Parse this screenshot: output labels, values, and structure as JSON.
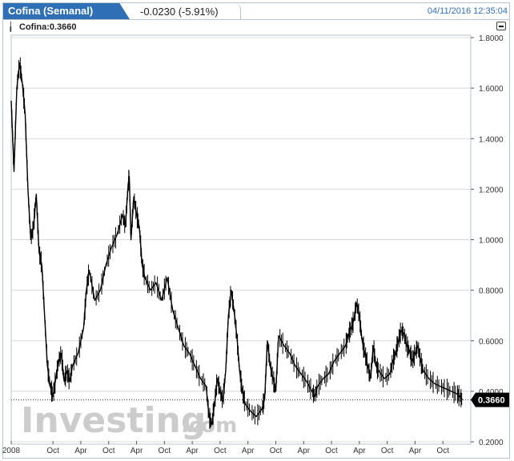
{
  "header": {
    "title": "Cofina (Semanal)",
    "change": "-0.0230 (-5.91%)",
    "timestamp": "04/11/2016 12:35:04"
  },
  "legend": {
    "label": "Cofina:0.3660"
  },
  "watermark": {
    "brand": "Investing",
    "suffix": ".com"
  },
  "colors": {
    "tab": "#2f6fb5",
    "series": "#000000",
    "price_label": "#000000",
    "grid": "#d8d8d8"
  },
  "chart_data": {
    "type": "line",
    "title": "Cofina (Semanal)",
    "xlabel": "",
    "ylabel": "",
    "ylim": [
      0.2,
      1.8
    ],
    "grid": true,
    "y_axis_position": "right",
    "y_ticks": [
      "1.8000",
      "1.6000",
      "1.4000",
      "1.2000",
      "1.0000",
      "0.8000",
      "0.6000",
      "0.4000",
      "0.2000"
    ],
    "x_tick_labels": [
      "2008",
      "Oct",
      "Apr",
      "Oct",
      "Apr",
      "Oct",
      "Apr",
      "Oct",
      "Apr",
      "Oct",
      "Apr",
      "Oct",
      "Apr",
      "Oct",
      "Apr",
      "Oct"
    ],
    "last_price": 0.366,
    "last_price_label": "0.3660",
    "series": [
      {
        "values": [
          [
            2008.0,
            1.55
          ],
          [
            2008.05,
            1.27
          ],
          [
            2008.1,
            1.6
          ],
          [
            2008.15,
            1.7
          ],
          [
            2008.2,
            1.62
          ],
          [
            2008.25,
            1.5
          ],
          [
            2008.3,
            1.2
          ],
          [
            2008.35,
            1.0
          ],
          [
            2008.4,
            1.05
          ],
          [
            2008.45,
            1.18
          ],
          [
            2008.5,
            0.95
          ],
          [
            2008.55,
            0.9
          ],
          [
            2008.6,
            0.7
          ],
          [
            2008.65,
            0.5
          ],
          [
            2008.7,
            0.42
          ],
          [
            2008.75,
            0.38
          ],
          [
            2008.8,
            0.45
          ],
          [
            2008.85,
            0.52
          ],
          [
            2008.9,
            0.55
          ],
          [
            2008.95,
            0.44
          ],
          [
            2009.0,
            0.48
          ],
          [
            2009.05,
            0.44
          ],
          [
            2009.1,
            0.5
          ],
          [
            2009.2,
            0.55
          ],
          [
            2009.3,
            0.65
          ],
          [
            2009.35,
            0.8
          ],
          [
            2009.4,
            0.88
          ],
          [
            2009.5,
            0.76
          ],
          [
            2009.6,
            0.8
          ],
          [
            2009.7,
            0.9
          ],
          [
            2009.8,
            0.97
          ],
          [
            2009.9,
            1.02
          ],
          [
            2010.0,
            1.1
          ],
          [
            2010.05,
            1.05
          ],
          [
            2010.1,
            1.22
          ],
          [
            2010.12,
            1.25
          ],
          [
            2010.15,
            1.0
          ],
          [
            2010.2,
            1.17
          ],
          [
            2010.25,
            1.1
          ],
          [
            2010.3,
            1.05
          ],
          [
            2010.35,
            0.9
          ],
          [
            2010.4,
            0.85
          ],
          [
            2010.5,
            0.8
          ],
          [
            2010.6,
            0.83
          ],
          [
            2010.7,
            0.76
          ],
          [
            2010.8,
            0.85
          ],
          [
            2010.9,
            0.72
          ],
          [
            2011.0,
            0.65
          ],
          [
            2011.1,
            0.58
          ],
          [
            2011.2,
            0.55
          ],
          [
            2011.3,
            0.5
          ],
          [
            2011.4,
            0.45
          ],
          [
            2011.5,
            0.42
          ],
          [
            2011.55,
            0.3
          ],
          [
            2011.6,
            0.27
          ],
          [
            2011.65,
            0.35
          ],
          [
            2011.7,
            0.45
          ],
          [
            2011.75,
            0.4
          ],
          [
            2011.8,
            0.36
          ],
          [
            2011.85,
            0.48
          ],
          [
            2011.9,
            0.7
          ],
          [
            2011.95,
            0.8
          ],
          [
            2012.0,
            0.72
          ],
          [
            2012.05,
            0.62
          ],
          [
            2012.1,
            0.48
          ],
          [
            2012.15,
            0.4
          ],
          [
            2012.2,
            0.35
          ],
          [
            2012.3,
            0.32
          ],
          [
            2012.4,
            0.3
          ],
          [
            2012.5,
            0.33
          ],
          [
            2012.55,
            0.37
          ],
          [
            2012.6,
            0.6
          ],
          [
            2012.65,
            0.5
          ],
          [
            2012.7,
            0.45
          ],
          [
            2012.75,
            0.4
          ],
          [
            2012.8,
            0.62
          ],
          [
            2012.9,
            0.58
          ],
          [
            2013.0,
            0.55
          ],
          [
            2013.1,
            0.5
          ],
          [
            2013.2,
            0.47
          ],
          [
            2013.3,
            0.44
          ],
          [
            2013.4,
            0.4
          ],
          [
            2013.45,
            0.38
          ],
          [
            2013.5,
            0.42
          ],
          [
            2013.6,
            0.45
          ],
          [
            2013.7,
            0.47
          ],
          [
            2013.8,
            0.52
          ],
          [
            2013.9,
            0.55
          ],
          [
            2014.0,
            0.58
          ],
          [
            2014.05,
            0.62
          ],
          [
            2014.1,
            0.65
          ],
          [
            2014.15,
            0.68
          ],
          [
            2014.2,
            0.75
          ],
          [
            2014.25,
            0.7
          ],
          [
            2014.3,
            0.6
          ],
          [
            2014.35,
            0.55
          ],
          [
            2014.4,
            0.5
          ],
          [
            2014.45,
            0.45
          ],
          [
            2014.5,
            0.58
          ],
          [
            2014.55,
            0.5
          ],
          [
            2014.6,
            0.48
          ],
          [
            2014.7,
            0.45
          ],
          [
            2014.8,
            0.47
          ],
          [
            2014.85,
            0.52
          ],
          [
            2014.9,
            0.55
          ],
          [
            2014.95,
            0.6
          ],
          [
            2015.0,
            0.64
          ],
          [
            2015.05,
            0.63
          ],
          [
            2015.1,
            0.58
          ],
          [
            2015.15,
            0.56
          ],
          [
            2015.2,
            0.52
          ],
          [
            2015.25,
            0.55
          ],
          [
            2015.3,
            0.58
          ],
          [
            2015.35,
            0.52
          ],
          [
            2015.4,
            0.48
          ],
          [
            2015.5,
            0.45
          ],
          [
            2015.6,
            0.43
          ],
          [
            2015.7,
            0.42
          ],
          [
            2015.8,
            0.41
          ],
          [
            2015.9,
            0.4
          ],
          [
            2016.0,
            0.39
          ],
          [
            2016.05,
            0.38
          ],
          [
            2016.1,
            0.366
          ]
        ]
      }
    ]
  }
}
